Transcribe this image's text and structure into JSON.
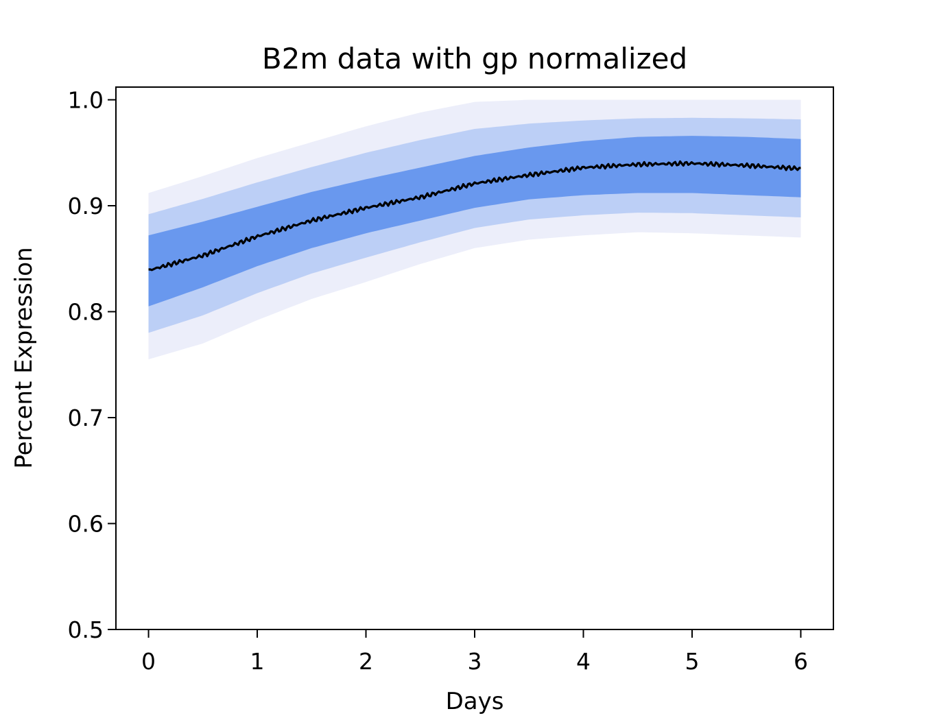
{
  "chart_data": {
    "type": "line",
    "title": "B2m data with gp normalized",
    "xlabel": "Days",
    "ylabel": "Percent Expression",
    "xlim": [
      -0.3,
      6.3
    ],
    "ylim": [
      0.5,
      1.012
    ],
    "xticks": [
      0,
      1,
      2,
      3,
      4,
      5,
      6
    ],
    "xtick_labels": [
      "0",
      "1",
      "2",
      "3",
      "4",
      "5",
      "6"
    ],
    "yticks": [
      0.5,
      0.6,
      0.7,
      0.8,
      0.9,
      1.0
    ],
    "ytick_labels": [
      "0.5",
      "0.6",
      "0.7",
      "0.8",
      "0.9",
      "1.0"
    ],
    "grid": false,
    "colors": {
      "band": "#6495ed",
      "mean": "#000000",
      "faint": "#c8cdf0"
    },
    "series": [
      {
        "role": "mean",
        "x": [
          0,
          0.5,
          1,
          1.5,
          2,
          2.5,
          3,
          3.5,
          4,
          4.5,
          5,
          5.5,
          6
        ],
        "y": [
          0.839,
          0.853,
          0.871,
          0.886,
          0.898,
          0.908,
          0.921,
          0.929,
          0.936,
          0.939,
          0.94,
          0.938,
          0.935
        ]
      },
      {
        "role": "band-inner",
        "x": [
          0,
          0.5,
          1,
          1.5,
          2,
          2.5,
          3,
          3.5,
          4,
          4.5,
          5,
          5.5,
          6
        ],
        "lower": [
          0.805,
          0.823,
          0.843,
          0.86,
          0.874,
          0.886,
          0.898,
          0.906,
          0.91,
          0.912,
          0.912,
          0.91,
          0.908
        ],
        "upper": [
          0.872,
          0.885,
          0.899,
          0.913,
          0.925,
          0.936,
          0.947,
          0.955,
          0.961,
          0.965,
          0.966,
          0.965,
          0.963
        ]
      },
      {
        "role": "band-outer",
        "x": [
          0,
          0.5,
          1,
          1.5,
          2,
          2.5,
          3,
          3.5,
          4,
          4.5,
          5,
          5.5,
          6
        ],
        "lower": [
          0.755,
          0.77,
          0.792,
          0.812,
          0.828,
          0.845,
          0.86,
          0.868,
          0.872,
          0.875,
          0.874,
          0.872,
          0.87
        ],
        "upper": [
          0.912,
          0.928,
          0.945,
          0.96,
          0.975,
          0.988,
          0.998,
          1.0,
          1.0,
          1.0,
          1.0,
          1.0,
          1.0
        ]
      }
    ]
  }
}
